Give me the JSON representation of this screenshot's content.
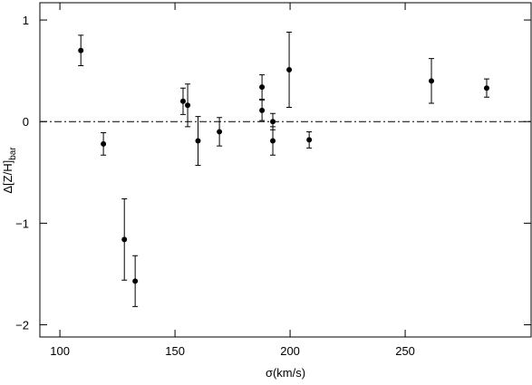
{
  "chart_data": {
    "type": "scatter",
    "xlabel": "σ(km/s)",
    "ylabel": "Δ[Z/H]",
    "ylabel_sub": "bar",
    "x": [
      109.1,
      118.9,
      128,
      132.7,
      153.5,
      155.5,
      160,
      169.3,
      187.8,
      187.8,
      192.5,
      192.5,
      199.6,
      208.3,
      261.4,
      285.4
    ],
    "series": [
      {
        "color": "#000000",
        "values": [
          0.7,
          -0.22,
          -1.16,
          -1.57,
          0.2,
          0.16,
          -0.19,
          -0.1,
          0.34,
          0.11,
          0.0,
          -0.19,
          0.51,
          -0.18,
          0.4,
          0.33
        ],
        "errors": [
          0.15,
          0.11,
          0.4,
          0.25,
          0.13,
          0.21,
          0.24,
          0.14,
          0.12,
          0.1,
          0.08,
          0.14,
          0.37,
          0.08,
          0.22,
          0.09
        ]
      }
    ],
    "xlim": [
      91.3,
      304.7
    ],
    "ylim": [
      -2.12,
      1.17
    ],
    "xticks": [
      100,
      150,
      200,
      250
    ],
    "yticks": [
      {
        "value": -2,
        "label": "−2"
      },
      {
        "value": -1,
        "label": "−1"
      },
      0,
      1
    ],
    "reference_line": 0
  }
}
